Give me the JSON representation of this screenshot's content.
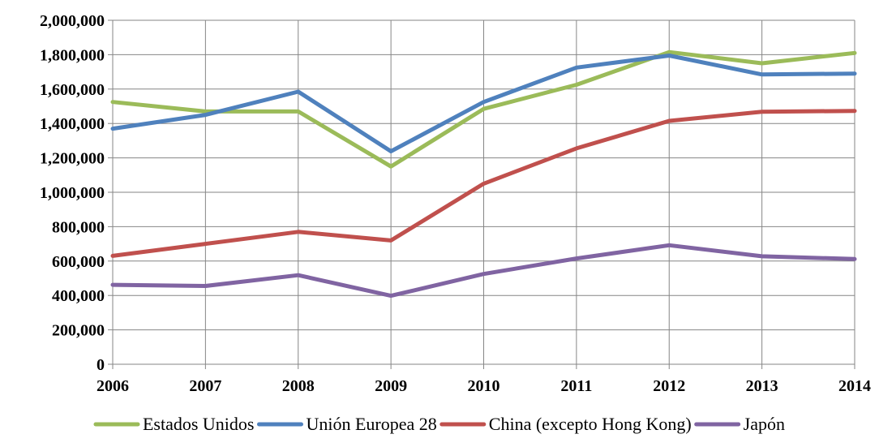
{
  "chart_data": {
    "type": "line",
    "title": "",
    "xlabel": "",
    "ylabel": "",
    "x": [
      "2006",
      "2007",
      "2008",
      "2009",
      "2010",
      "2011",
      "2012",
      "2013",
      "2014"
    ],
    "ylim": [
      0,
      2000000
    ],
    "yticks": [
      0,
      200000,
      400000,
      600000,
      800000,
      1000000,
      1200000,
      1400000,
      1600000,
      1800000,
      2000000
    ],
    "ytick_labels": [
      "0",
      "200,000",
      "400,000",
      "600,000",
      "800,000",
      "1,000,000",
      "1,200,000",
      "1,400,000",
      "1,600,000",
      "1,800,000",
      "2,000,000"
    ],
    "grid": true,
    "legend_position": "bottom",
    "series": [
      {
        "name": "Estados Unidos",
        "color": "#9BBB59",
        "values": [
          1525000,
          1470000,
          1470000,
          1150000,
          1485000,
          1625000,
          1815000,
          1750000,
          1810000
        ]
      },
      {
        "name": "Unión Europea 28",
        "color": "#4F81BD",
        "values": [
          1370000,
          1450000,
          1585000,
          1238000,
          1525000,
          1725000,
          1795000,
          1685000,
          1690000
        ]
      },
      {
        "name": "China (excepto Hong Kong)",
        "color": "#C0504D",
        "values": [
          630000,
          700000,
          770000,
          720000,
          1050000,
          1255000,
          1415000,
          1468000,
          1473000
        ]
      },
      {
        "name": "Japón",
        "color": "#8064A2",
        "values": [
          462000,
          455000,
          518000,
          398000,
          525000,
          615000,
          692000,
          628000,
          612000
        ]
      }
    ]
  }
}
